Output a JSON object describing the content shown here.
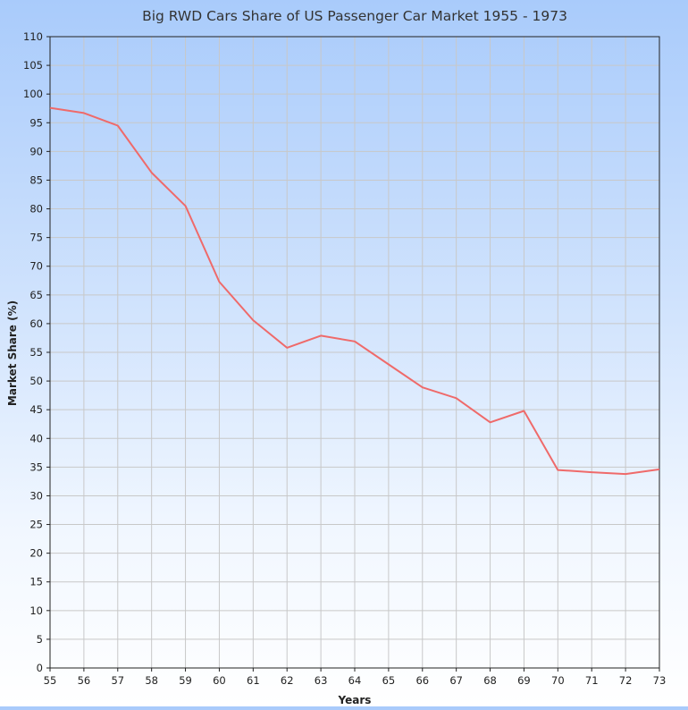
{
  "chart_data": {
    "type": "line",
    "title": "Big RWD Cars Share of US Passenger Car Market 1955 - 1973",
    "xlabel": "Years",
    "ylabel": "Market Share (%)",
    "x": [
      "55",
      "56",
      "57",
      "58",
      "59",
      "60",
      "61",
      "62",
      "63",
      "64",
      "65",
      "66",
      "67",
      "68",
      "69",
      "70",
      "71",
      "72",
      "73"
    ],
    "series": [
      {
        "values": [
          97.6,
          96.7,
          94.5,
          86.3,
          80.5,
          67.3,
          60.6,
          55.8,
          57.9,
          56.9,
          52.9,
          48.9,
          47.0,
          42.8,
          44.8,
          34.5,
          34.1,
          33.8,
          34.6
        ],
        "color": "#ef6a6a"
      }
    ],
    "ylim": [
      0,
      110
    ],
    "ytick_step": 5,
    "grid": true,
    "legend": "none"
  }
}
